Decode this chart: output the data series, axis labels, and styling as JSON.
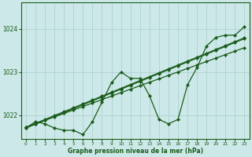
{
  "bg_color": "#cce8e8",
  "grid_color": "#aacece",
  "line_color": "#1a5c1a",
  "text_color": "#1a5c1a",
  "xlabel": "Graphe pression niveau de la mer (hPa)",
  "xlim": [
    -0.5,
    23.5
  ],
  "ylim": [
    1021.45,
    1024.6
  ],
  "yticks": [
    1022,
    1023,
    1024
  ],
  "xticks": [
    0,
    1,
    2,
    3,
    4,
    5,
    6,
    7,
    8,
    9,
    10,
    11,
    12,
    13,
    14,
    15,
    16,
    17,
    18,
    19,
    20,
    21,
    22,
    23
  ],
  "x": [
    0,
    1,
    2,
    3,
    4,
    5,
    6,
    7,
    8,
    9,
    10,
    11,
    12,
    13,
    14,
    15,
    16,
    17,
    18,
    19,
    20,
    21,
    22,
    23
  ],
  "y_zigzag": [
    1021.7,
    1021.85,
    1021.8,
    1021.7,
    1021.65,
    1021.65,
    1021.55,
    1021.85,
    1022.3,
    1022.75,
    1023.0,
    1022.85,
    1022.85,
    1022.45,
    1021.9,
    1021.8,
    1021.9,
    1022.7,
    1023.1,
    1023.6,
    1023.8,
    1023.85,
    1023.85,
    1024.05
  ],
  "y_linear1": [
    1021.72,
    1021.8,
    1021.88,
    1021.96,
    1022.04,
    1022.12,
    1022.2,
    1022.28,
    1022.36,
    1022.44,
    1022.52,
    1022.6,
    1022.68,
    1022.76,
    1022.84,
    1022.92,
    1023.0,
    1023.08,
    1023.16,
    1023.24,
    1023.32,
    1023.4,
    1023.48,
    1023.56
  ],
  "y_linear2": [
    1021.72,
    1021.81,
    1021.9,
    1021.99,
    1022.08,
    1022.17,
    1022.26,
    1022.35,
    1022.44,
    1022.53,
    1022.62,
    1022.71,
    1022.8,
    1022.89,
    1022.98,
    1023.07,
    1023.16,
    1023.25,
    1023.34,
    1023.43,
    1023.52,
    1023.61,
    1023.7,
    1023.79
  ],
  "y_linear3": [
    1021.7,
    1021.79,
    1021.88,
    1021.97,
    1022.06,
    1022.15,
    1022.24,
    1022.33,
    1022.42,
    1022.51,
    1022.6,
    1022.69,
    1022.78,
    1022.87,
    1022.96,
    1023.05,
    1023.14,
    1023.23,
    1023.32,
    1023.41,
    1023.5,
    1023.59,
    1023.68,
    1023.77
  ]
}
